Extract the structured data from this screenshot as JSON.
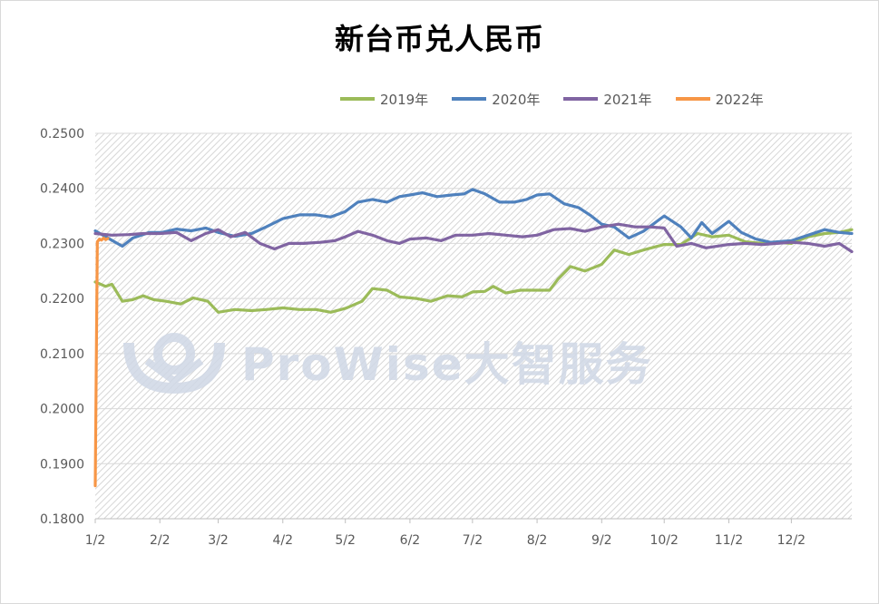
{
  "chart_data": {
    "type": "line",
    "title": "新台币兑人民币",
    "xlabel": "",
    "ylabel": "",
    "x_tick_labels": [
      "1/2",
      "2/2",
      "3/2",
      "4/2",
      "5/2",
      "6/2",
      "7/2",
      "8/2",
      "9/2",
      "10/2",
      "11/2",
      "12/2"
    ],
    "y_tick_labels": [
      "0.1800",
      "0.1900",
      "0.2000",
      "0.2100",
      "0.2200",
      "0.2300",
      "0.2400",
      "0.2500"
    ],
    "ylim": [
      0.18,
      0.25
    ],
    "x_domain": [
      "1/2",
      "12/31"
    ],
    "grid": "horizontal",
    "legend_position": "top",
    "background_pattern": "diagonal-hatch",
    "series": [
      {
        "name": "2019年",
        "color": "#9bbb59",
        "points": [
          [
            "1/2",
            0.223
          ],
          [
            "1/7",
            0.2222
          ],
          [
            "1/10",
            0.2226
          ],
          [
            "1/15",
            0.2195
          ],
          [
            "1/20",
            0.2198
          ],
          [
            "1/25",
            0.2205
          ],
          [
            "1/30",
            0.2198
          ],
          [
            "2/5",
            0.2195
          ],
          [
            "2/12",
            0.219
          ],
          [
            "2/18",
            0.2201
          ],
          [
            "2/25",
            0.2195
          ],
          [
            "3/2",
            0.2175
          ],
          [
            "3/10",
            0.218
          ],
          [
            "3/18",
            0.2178
          ],
          [
            "3/25",
            0.218
          ],
          [
            "4/2",
            0.2183
          ],
          [
            "4/10",
            0.218
          ],
          [
            "4/18",
            0.218
          ],
          [
            "4/25",
            0.2175
          ],
          [
            "5/2",
            0.2182
          ],
          [
            "5/10",
            0.2195
          ],
          [
            "5/15",
            0.2218
          ],
          [
            "5/22",
            0.2215
          ],
          [
            "5/28",
            0.2203
          ],
          [
            "6/5",
            0.22
          ],
          [
            "6/12",
            0.2195
          ],
          [
            "6/20",
            0.2205
          ],
          [
            "6/27",
            0.2203
          ],
          [
            "7/2",
            0.2212
          ],
          [
            "7/8",
            0.2213
          ],
          [
            "7/12",
            0.2222
          ],
          [
            "7/18",
            0.221
          ],
          [
            "7/25",
            0.2215
          ],
          [
            "8/2",
            0.2215
          ],
          [
            "8/8",
            0.2215
          ],
          [
            "8/12",
            0.2235
          ],
          [
            "8/18",
            0.2258
          ],
          [
            "8/25",
            0.225
          ],
          [
            "9/2",
            0.2262
          ],
          [
            "9/8",
            0.2288
          ],
          [
            "9/15",
            0.228
          ],
          [
            "9/22",
            0.2288
          ],
          [
            "10/2",
            0.2298
          ],
          [
            "10/10",
            0.2298
          ],
          [
            "10/18",
            0.2318
          ],
          [
            "10/25",
            0.2312
          ],
          [
            "11/2",
            0.2315
          ],
          [
            "11/10",
            0.2303
          ],
          [
            "11/18",
            0.23
          ],
          [
            "11/25",
            0.2302
          ],
          [
            "12/2",
            0.23
          ],
          [
            "12/10",
            0.2312
          ],
          [
            "12/18",
            0.2318
          ],
          [
            "12/25",
            0.232
          ],
          [
            "12/31",
            0.2325
          ]
        ]
      },
      {
        "name": "2020年",
        "color": "#4f81bd",
        "points": [
          [
            "1/2",
            0.2323
          ],
          [
            "1/8",
            0.231
          ],
          [
            "1/15",
            0.2295
          ],
          [
            "1/20",
            0.231
          ],
          [
            "1/28",
            0.232
          ],
          [
            "2/3",
            0.232
          ],
          [
            "2/10",
            0.2326
          ],
          [
            "2/17",
            0.2323
          ],
          [
            "2/24",
            0.2328
          ],
          [
            "3/2",
            0.232
          ],
          [
            "3/10",
            0.2313
          ],
          [
            "3/18",
            0.2318
          ],
          [
            "3/25",
            0.233
          ],
          [
            "4/2",
            0.2345
          ],
          [
            "4/10",
            0.2352
          ],
          [
            "4/18",
            0.2352
          ],
          [
            "4/25",
            0.2348
          ],
          [
            "5/2",
            0.2358
          ],
          [
            "5/8",
            0.2375
          ],
          [
            "5/15",
            0.238
          ],
          [
            "5/22",
            0.2375
          ],
          [
            "5/28",
            0.2385
          ],
          [
            "6/2",
            0.2388
          ],
          [
            "6/8",
            0.2392
          ],
          [
            "6/15",
            0.2385
          ],
          [
            "6/22",
            0.2388
          ],
          [
            "6/28",
            0.239
          ],
          [
            "7/2",
            0.2398
          ],
          [
            "7/8",
            0.239
          ],
          [
            "7/15",
            0.2375
          ],
          [
            "7/22",
            0.2375
          ],
          [
            "7/28",
            0.238
          ],
          [
            "8/2",
            0.2388
          ],
          [
            "8/8",
            0.239
          ],
          [
            "8/15",
            0.2372
          ],
          [
            "8/22",
            0.2365
          ],
          [
            "8/28",
            0.235
          ],
          [
            "9/2",
            0.2335
          ],
          [
            "9/8",
            0.233
          ],
          [
            "9/15",
            0.231
          ],
          [
            "9/22",
            0.2322
          ],
          [
            "10/2",
            0.235
          ],
          [
            "10/10",
            0.233
          ],
          [
            "10/15",
            0.231
          ],
          [
            "10/20",
            0.2338
          ],
          [
            "10/25",
            0.2318
          ],
          [
            "11/2",
            0.234
          ],
          [
            "11/8",
            0.232
          ],
          [
            "11/15",
            0.2308
          ],
          [
            "11/22",
            0.2302
          ],
          [
            "12/2",
            0.2305
          ],
          [
            "12/10",
            0.2315
          ],
          [
            "12/18",
            0.2325
          ],
          [
            "12/25",
            0.232
          ],
          [
            "12/31",
            0.2318
          ]
        ]
      },
      {
        "name": "2021年",
        "color": "#8064a2",
        "points": [
          [
            "1/2",
            0.2318
          ],
          [
            "1/10",
            0.2315
          ],
          [
            "1/18",
            0.2316
          ],
          [
            "1/25",
            0.2318
          ],
          [
            "2/2",
            0.2318
          ],
          [
            "2/10",
            0.232
          ],
          [
            "2/17",
            0.2305
          ],
          [
            "2/24",
            0.2318
          ],
          [
            "3/2",
            0.2325
          ],
          [
            "3/8",
            0.2312
          ],
          [
            "3/15",
            0.232
          ],
          [
            "3/22",
            0.23
          ],
          [
            "3/29",
            0.229
          ],
          [
            "4/5",
            0.23
          ],
          [
            "4/12",
            0.23
          ],
          [
            "4/20",
            0.2302
          ],
          [
            "4/27",
            0.2305
          ],
          [
            "5/2",
            0.2312
          ],
          [
            "5/8",
            0.2322
          ],
          [
            "5/15",
            0.2315
          ],
          [
            "5/22",
            0.2305
          ],
          [
            "5/28",
            0.23
          ],
          [
            "6/2",
            0.2308
          ],
          [
            "6/10",
            0.231
          ],
          [
            "6/17",
            0.2305
          ],
          [
            "6/24",
            0.2315
          ],
          [
            "7/2",
            0.2315
          ],
          [
            "7/10",
            0.2318
          ],
          [
            "7/18",
            0.2315
          ],
          [
            "7/26",
            0.2312
          ],
          [
            "8/2",
            0.2315
          ],
          [
            "8/10",
            0.2325
          ],
          [
            "8/18",
            0.2327
          ],
          [
            "8/25",
            0.2322
          ],
          [
            "9/2",
            0.233
          ],
          [
            "9/10",
            0.2335
          ],
          [
            "9/18",
            0.233
          ],
          [
            "9/25",
            0.233
          ],
          [
            "10/2",
            0.2328
          ],
          [
            "10/8",
            0.2295
          ],
          [
            "10/15",
            0.23
          ],
          [
            "10/22",
            0.2292
          ],
          [
            "11/2",
            0.2298
          ],
          [
            "11/10",
            0.23
          ],
          [
            "11/18",
            0.2298
          ],
          [
            "11/25",
            0.23
          ],
          [
            "12/2",
            0.2302
          ],
          [
            "12/10",
            0.23
          ],
          [
            "12/18",
            0.2295
          ],
          [
            "12/25",
            0.23
          ],
          [
            "12/31",
            0.2285
          ]
        ]
      },
      {
        "name": "2022年",
        "color": "#f79646",
        "points": [
          [
            "1/2",
            0.186
          ],
          [
            "1/3",
            0.2303
          ],
          [
            "1/4",
            0.2308
          ],
          [
            "1/5",
            0.2306
          ],
          [
            "1/6",
            0.231
          ],
          [
            "1/7",
            0.2307
          ],
          [
            "1/8",
            0.2309
          ]
        ]
      }
    ]
  },
  "watermark": {
    "text": "ProWise大智服务"
  }
}
